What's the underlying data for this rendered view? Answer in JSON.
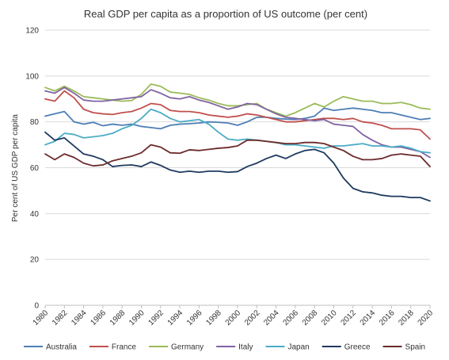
{
  "chart_data": {
    "type": "line",
    "title": "Real GDP per capita as a proportion  of US outcome  (per cent)",
    "ylabel": "Per cent of US GDP per capita",
    "xlabel": "",
    "ylim": [
      0,
      120
    ],
    "yticks": [
      0,
      20,
      40,
      60,
      80,
      100,
      120
    ],
    "xlim": [
      1980,
      2020
    ],
    "xticks": [
      1980,
      1982,
      1984,
      1986,
      1988,
      1990,
      1992,
      1994,
      1996,
      1998,
      2000,
      2002,
      2004,
      2006,
      2008,
      2010,
      2012,
      2014,
      2016,
      2018,
      2020
    ],
    "grid": "horizontal",
    "legend_position": "bottom",
    "x": [
      1980,
      1981,
      1982,
      1983,
      1984,
      1985,
      1986,
      1987,
      1988,
      1989,
      1990,
      1991,
      1992,
      1993,
      1994,
      1995,
      1996,
      1997,
      1998,
      1999,
      2000,
      2001,
      2002,
      2003,
      2004,
      2005,
      2006,
      2007,
      2008,
      2009,
      2010,
      2011,
      2012,
      2013,
      2014,
      2015,
      2016,
      2017,
      2018,
      2019,
      2020
    ],
    "series": [
      {
        "name": "Australia",
        "color": "#4e7fb5",
        "values": [
          82.5,
          83.5,
          84.5,
          80,
          79,
          79.8,
          78.3,
          79,
          78.5,
          79,
          78,
          77.5,
          77,
          78.5,
          79,
          79.2,
          79.5,
          80,
          79.8,
          79.5,
          78.5,
          80,
          82,
          82,
          81.5,
          81.2,
          81,
          81.5,
          82.5,
          86,
          85,
          85.5,
          86,
          85.5,
          85,
          84,
          84,
          83,
          82,
          81,
          81.5
        ]
      },
      {
        "name": "France",
        "color": "#c0504d",
        "values": [
          90,
          89,
          93.5,
          90.5,
          85.5,
          84,
          83.5,
          83.2,
          84,
          84.5,
          86,
          88,
          87.5,
          85,
          84.5,
          84.5,
          84,
          83,
          82.5,
          82,
          82.5,
          83.5,
          83,
          82,
          81,
          80,
          80,
          80.5,
          81,
          81.5,
          81.5,
          81,
          81.5,
          80,
          79.5,
          78.5,
          77,
          77,
          77,
          76.5,
          72.5
        ]
      },
      {
        "name": "Germany",
        "color": "#9bbb59",
        "values": [
          95,
          93.5,
          95.5,
          93.5,
          91,
          90.5,
          90,
          89.5,
          89,
          89.3,
          92,
          96.5,
          95.5,
          93,
          92.5,
          92,
          90.5,
          89.5,
          88,
          87,
          87,
          87.5,
          88,
          85.5,
          84,
          82.5,
          84,
          86,
          88,
          86.5,
          89,
          91,
          90,
          89,
          89,
          88,
          88,
          88.5,
          87.5,
          86,
          85.5
        ]
      },
      {
        "name": "Italy",
        "color": "#8064a2",
        "values": [
          93.5,
          92.5,
          95,
          92.5,
          89.5,
          89,
          89,
          89.5,
          90,
          90.5,
          91,
          94,
          92.5,
          90.5,
          90,
          91,
          89.5,
          88.5,
          87,
          85.5,
          86.5,
          88,
          87.5,
          85.5,
          83.5,
          82,
          81.5,
          81,
          80.5,
          81,
          79,
          78.5,
          78,
          74.5,
          72,
          70,
          69,
          69,
          68,
          67,
          64.5
        ]
      },
      {
        "name": "Japan",
        "color": "#4bacc6",
        "values": [
          70,
          71.5,
          75,
          74.5,
          73,
          73.5,
          74,
          75,
          77,
          78.5,
          81.5,
          85.5,
          84,
          81.5,
          80,
          80.5,
          81,
          79,
          75.5,
          72.5,
          72,
          72.5,
          72,
          71.5,
          71,
          70,
          70,
          69.5,
          69,
          68.5,
          69.5,
          69.5,
          70,
          70.5,
          69.5,
          69.5,
          69,
          69.5,
          68.5,
          67,
          66.5
        ]
      },
      {
        "name": "Greece",
        "color": "#1f3a5f",
        "values": [
          75.5,
          72,
          73,
          69.5,
          66,
          65,
          63.5,
          60.5,
          61,
          61.2,
          60.5,
          62.5,
          61,
          59,
          58,
          58.5,
          58,
          58.5,
          58.5,
          58,
          58.3,
          60.5,
          62,
          64,
          65.5,
          64,
          66,
          67.5,
          68,
          66.5,
          62,
          55.5,
          51,
          49.5,
          49,
          48,
          47.5,
          47.5,
          47,
          47,
          45.5
        ]
      },
      {
        "name": "Spain",
        "color": "#6b2b2b",
        "values": [
          66,
          63.5,
          66,
          64.5,
          62,
          60.8,
          61.2,
          63,
          64,
          65,
          66.5,
          70,
          69,
          66.5,
          66.3,
          67.8,
          67.5,
          68,
          68.5,
          68.8,
          69.5,
          72,
          72,
          71.5,
          71,
          70.5,
          70.5,
          71,
          71,
          70.5,
          69,
          67.5,
          65,
          63.5,
          63.5,
          64,
          65.5,
          66,
          65.5,
          65,
          60.5
        ]
      }
    ]
  }
}
